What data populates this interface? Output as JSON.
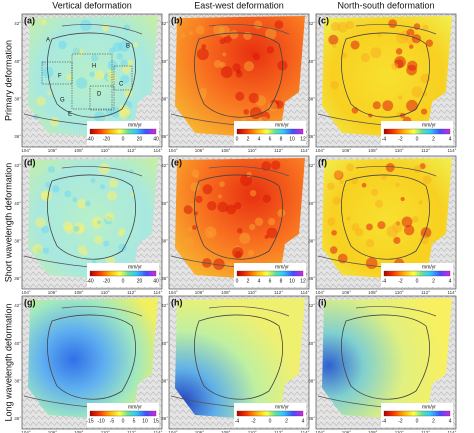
{
  "column_titles": [
    "Vertical deformation",
    "East-west deformation",
    "North-south deformation"
  ],
  "row_titles": [
    "Primary deformation",
    "Short wavelength deformation",
    "Long wavelength deformation"
  ],
  "lon_ticks": [
    "104°",
    "106°",
    "108°",
    "110°",
    "112°",
    "114°"
  ],
  "lat_ticks": [
    "42°",
    "40°",
    "38°",
    "36°"
  ],
  "region_labels": [
    "A",
    "B",
    "C",
    "D",
    "E",
    "F",
    "G",
    "H"
  ],
  "panels": [
    {
      "label": "(a)",
      "colorbar": {
        "unit": "mm/yr",
        "ticks": [
          "-40",
          "-20",
          "0",
          "20",
          "40"
        ]
      }
    },
    {
      "label": "(b)",
      "colorbar": {
        "unit": "mm/yr",
        "ticks": [
          "0",
          "2",
          "4",
          "6",
          "8",
          "10",
          "12"
        ]
      }
    },
    {
      "label": "(c)",
      "colorbar": {
        "unit": "mm/yr",
        "ticks": [
          "-4",
          "-2",
          "0",
          "2",
          "4"
        ]
      }
    },
    {
      "label": "(d)",
      "colorbar": {
        "unit": "mm/yr",
        "ticks": [
          "-40",
          "-20",
          "0",
          "20",
          "40"
        ]
      }
    },
    {
      "label": "(e)",
      "colorbar": {
        "unit": "mm/yr",
        "ticks": [
          "0",
          "2",
          "4",
          "6",
          "8",
          "10",
          "12"
        ]
      }
    },
    {
      "label": "(f)",
      "colorbar": {
        "unit": "mm/yr",
        "ticks": [
          "-4",
          "-2",
          "0",
          "2",
          "4"
        ]
      }
    },
    {
      "label": "(g)",
      "colorbar": {
        "unit": "mm/yr",
        "ticks": [
          "-15",
          "-10",
          "-5",
          "0",
          "5",
          "10",
          "15"
        ]
      }
    },
    {
      "label": "(h)",
      "colorbar": {
        "unit": "mm/yr",
        "ticks": [
          "-4",
          "-2",
          "0",
          "2",
          "4"
        ]
      }
    },
    {
      "label": "(i)",
      "colorbar": {
        "unit": "mm/yr",
        "ticks": [
          "-4",
          "-2",
          "0",
          "2",
          "4"
        ]
      }
    }
  ]
}
